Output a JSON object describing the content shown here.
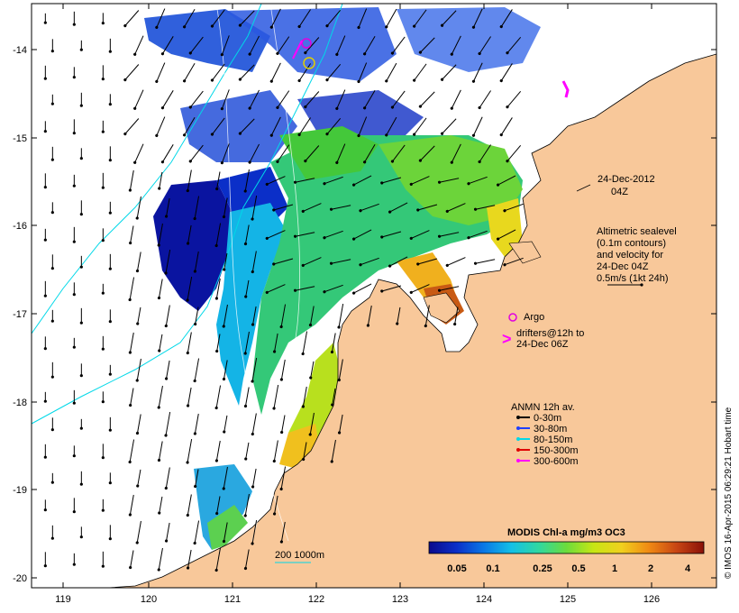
{
  "axes": {
    "lon_ticks": [
      "119",
      "120",
      "121",
      "122",
      "123",
      "124",
      "125",
      "126"
    ],
    "lat_ticks": [
      "-14",
      "-15",
      "-16",
      "-17",
      "-18",
      "-19",
      "-20"
    ],
    "lon_range": [
      118.6,
      126.7
    ],
    "lat_range": [
      -20.1,
      -13.6
    ]
  },
  "title": {
    "date": "24-Dec-2012",
    "time": "04Z"
  },
  "altimetry_note": [
    "Altimetric sealevel",
    "(0.1m contours)",
    "and velocity for",
    "24-Dec 04Z",
    "0.5m/s (1kt 24h)"
  ],
  "argo_label": "Argo",
  "drifters_label": [
    "drifters@12h to",
    "24-Dec 06Z"
  ],
  "anmn_legend": {
    "title": "ANMN 12h av.",
    "items": [
      {
        "label": "0-30m",
        "color": "#000000"
      },
      {
        "label": "30-80m",
        "color": "#1f3fff"
      },
      {
        "label": "80-150m",
        "color": "#00d8e8"
      },
      {
        "label": "150-300m",
        "color": "#e00000"
      },
      {
        "label": "300-600m",
        "color": "#ff00ff"
      }
    ]
  },
  "colorbar": {
    "title": "MODIS Chl-a mg/m3 OC3",
    "ticks": [
      "0.05",
      "0.1",
      "0.25",
      "0.5",
      "1",
      "2",
      "4"
    ],
    "colors": [
      "#0a0a8c",
      "#0b2fc8",
      "#0a78e6",
      "#14c0e6",
      "#30d8a0",
      "#6cdc3c",
      "#c8e614",
      "#f0d01e",
      "#f08a14",
      "#c84614",
      "#8a1008"
    ]
  },
  "depth_label": "200  1000m",
  "credit": "© IMOS 16-Apr-2015 06:29:21 Hobart time",
  "colors": {
    "land": "#f8c89a",
    "coast": "#000000",
    "isobath": "#00d8e8",
    "argo": "#e000e0",
    "drifter": "#ff00ff"
  }
}
